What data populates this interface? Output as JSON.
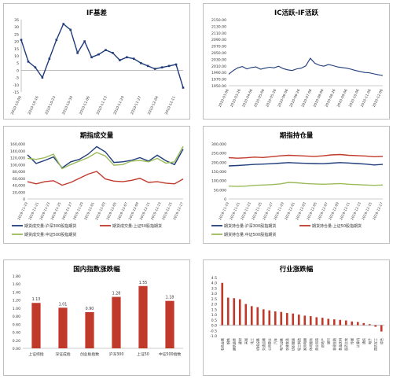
{
  "chart_data": [
    {
      "id": "if_basis",
      "type": "line",
      "title": "IF基差",
      "ylim": [
        -15,
        35
      ],
      "yticks": [
        -15,
        -10,
        -5,
        0,
        5,
        10,
        15,
        20,
        25,
        30,
        35
      ],
      "x": [
        "2010-10-09",
        "2010-10-12",
        "2010-10-15",
        "2010-10-18",
        "2010-10-21",
        "2010-10-23",
        "2010-10-26",
        "2010-10-29",
        "2010-11-01",
        "2010-11-04",
        "2010-11-06",
        "2010-11-09",
        "2010-11-12",
        "2010-11-15",
        "2010-11-18",
        "2010-11-21",
        "2010-11-24",
        "2010-11-27",
        "2010-11-30",
        "2010-12-03",
        "2010-12-06",
        "2010-12-08",
        "2010-12-11",
        "2010-12-14"
      ],
      "xticklabels": [
        "2010-10-09",
        "2010-10-16",
        "2010-10-23",
        "2010-10-30",
        "2010-11-06",
        "2010-11-13",
        "2010-11-20",
        "2010-11-27",
        "2010-12-04",
        "2010-12-11"
      ],
      "series": [
        {
          "values": [
            21,
            6,
            2,
            -5,
            8,
            21,
            32,
            28,
            12,
            20,
            9,
            11,
            14,
            12,
            7,
            9,
            8,
            5,
            3,
            1,
            2,
            3,
            4,
            -12
          ],
          "color": "#1f3c7a"
        }
      ]
    },
    {
      "id": "ic_if",
      "type": "line",
      "title": "IC活跃-IF活跃",
      "ylim": [
        1950,
        2150
      ],
      "yticks": [
        "1950.00",
        "1970.00",
        "1990.00",
        "2010.00",
        "2030.00",
        "2050.00",
        "2070.00",
        "2090.00",
        "2110.00",
        "2130.00",
        "2150.00"
      ],
      "ytick_values": [
        1950,
        1970,
        1990,
        2010,
        2030,
        2050,
        2070,
        2090,
        2110,
        2130,
        2150
      ],
      "xticklabels": [
        "2010-03-06",
        "2010-03-26",
        "2010-04-06",
        "2010-05-06",
        "2010-05-26",
        "2010-06-06",
        "2010-06-26",
        "2010-07-06",
        "2010-08-06",
        "2010-08-26",
        "2010-09-06",
        "2010-10-06",
        "2010-11-06",
        "2010-12-06"
      ],
      "series": [
        {
          "values": [
            1985,
            1996,
            2004,
            2008,
            2001,
            2005,
            2007,
            2000,
            2003,
            2006,
            2004,
            2009,
            2002,
            1998,
            1996,
            2001,
            2003,
            2010,
            2033,
            2018,
            2012,
            2009,
            2014,
            2011,
            2007,
            2005,
            2003,
            2000,
            1996,
            1993,
            1990,
            1989,
            1986,
            1983,
            1981
          ],
          "color": "#1f3c7a"
        }
      ]
    },
    {
      "id": "volume",
      "type": "line",
      "title": "期指成交量",
      "ylim": [
        0,
        160000
      ],
      "yticks": [
        "0",
        "20,000",
        "40,000",
        "60,000",
        "80,000",
        "100,000",
        "120,000",
        "140,000",
        "160,000"
      ],
      "ytick_values": [
        0,
        20000,
        40000,
        60000,
        80000,
        100000,
        120000,
        140000,
        160000
      ],
      "xticklabels": [
        "2019-11-19",
        "2019-11-21",
        "2019-11-23",
        "2019-11-25",
        "2019-11-27",
        "2019-11-29",
        "2019-12-01",
        "2019-12-03",
        "2019-12-05",
        "2019-12-07",
        "2019-12-09",
        "2019-12-11",
        "2019-12-13",
        "2019-12-15",
        "2019-12-17"
      ],
      "legend": [
        "期货成交量:沪深300股指期货",
        "期货成交量:上证50股指期货",
        "期货成交量:中证500股指期货"
      ],
      "legend_position": "bottom",
      "series": [
        {
          "name": "期货成交量:沪深300股指期货",
          "color": "#1f3c7a",
          "values": [
            128000,
            103000,
            112000,
            122000,
            90000,
            108000,
            115000,
            130000,
            152000,
            137000,
            106000,
            108000,
            112000,
            120000,
            110000,
            127000,
            111000,
            100000,
            145000
          ]
        },
        {
          "name": "期货成交量:上证50股指期货",
          "color": "#c0392b",
          "values": [
            50000,
            44000,
            50000,
            53000,
            40000,
            48000,
            60000,
            72000,
            80000,
            58000,
            52000,
            50000,
            54000,
            60000,
            48000,
            50000,
            46000,
            44000,
            58000
          ]
        },
        {
          "name": "期货成交量:中证500股指期货",
          "color": "#9bbb59",
          "values": [
            118000,
            115000,
            120000,
            130000,
            88000,
            100000,
            110000,
            120000,
            135000,
            125000,
            98000,
            100000,
            110000,
            112000,
            108000,
            118000,
            104000,
            108000,
            153000
          ]
        }
      ]
    },
    {
      "id": "open_interest",
      "type": "line",
      "title": "期指持仓量",
      "ylim": [
        0,
        300000
      ],
      "yticks": [
        "0",
        "50,000",
        "100,000",
        "150,000",
        "200,000",
        "250,000",
        "300,000"
      ],
      "ytick_values": [
        0,
        50000,
        100000,
        150000,
        200000,
        250000,
        300000
      ],
      "xticklabels": [
        "2019-11-19",
        "2019-11-21",
        "2019-11-23",
        "2019-11-25",
        "2019-11-27",
        "2019-11-29",
        "2019-12-01",
        "2019-12-03",
        "2019-12-05",
        "2019-12-07",
        "2019-12-09",
        "2019-12-11",
        "2019-12-13",
        "2019-12-15",
        "2019-12-17"
      ],
      "legend": [
        "期货持仓量:沪深300股指期货",
        "期货持仓量:上证50股指期货",
        "期货持仓量:中证500股指期货"
      ],
      "legend_position": "bottom",
      "series": [
        {
          "name": "期货持仓量:沪深300股指期货",
          "color": "#1f3c7a",
          "values": [
            180000,
            182000,
            185000,
            188000,
            190000,
            192000,
            195000,
            198000,
            196000,
            194000,
            193000,
            192000,
            195000,
            198000,
            196000,
            193000,
            190000,
            185000,
            188000
          ]
        },
        {
          "name": "期货持仓量:上证50股指期货",
          "color": "#c0392b",
          "values": [
            225000,
            222000,
            224000,
            228000,
            226000,
            230000,
            235000,
            238000,
            236000,
            234000,
            232000,
            235000,
            240000,
            242000,
            238000,
            236000,
            234000,
            230000,
            232000
          ]
        },
        {
          "name": "期货持仓量:中证500股指期货",
          "color": "#9bbb59",
          "values": [
            70000,
            68000,
            70000,
            74000,
            76000,
            78000,
            82000,
            90000,
            88000,
            84000,
            82000,
            80000,
            82000,
            84000,
            80000,
            78000,
            76000,
            74000,
            76000
          ]
        }
      ]
    },
    {
      "id": "domestic_index",
      "type": "bar",
      "title": "国内指数涨跌幅",
      "categories": [
        "上证综指",
        "深证成指",
        "创业板指数",
        "沪深300",
        "上证50",
        "中证500指数"
      ],
      "values": [
        1.13,
        1.01,
        0.9,
        1.28,
        1.55,
        1.18
      ],
      "value_labels": [
        "1.13",
        "1.01",
        "0.90",
        "1.28",
        "1.55",
        "1.18"
      ],
      "yticks": [
        "0.00",
        "0.20",
        "0.40",
        "0.60",
        "0.80",
        "1.00",
        "1.20",
        "1.40",
        "1.60",
        "1.80"
      ],
      "ytick_values": [
        0,
        0.2,
        0.4,
        0.6,
        0.8,
        1.0,
        1.2,
        1.4,
        1.6,
        1.8
      ],
      "ylim": [
        0,
        1.8
      ],
      "color": "#c0392b"
    },
    {
      "id": "industry",
      "type": "bar",
      "title": "行业涨跌幅",
      "categories": [
        "有色金属",
        "钢铁",
        "建筑装饰",
        "建材",
        "采掘",
        "化工",
        "机械设备",
        "交通运输",
        "公用事业",
        "汽车",
        "电气设备",
        "农林牧渔",
        "纺织服装",
        "轻工制造",
        "家用电器",
        "休闲服务",
        "商业贸易",
        "房地产",
        "银行",
        "非银金融",
        "食品饮料",
        "医药生物",
        "传媒",
        "计算机",
        "通信",
        "电子",
        "国防军工",
        "综合"
      ],
      "values": [
        4.0,
        2.6,
        2.55,
        2.45,
        2.0,
        1.8,
        1.7,
        1.5,
        1.4,
        1.3,
        1.25,
        1.15,
        1.1,
        1.0,
        0.9,
        0.85,
        0.75,
        0.7,
        0.6,
        0.55,
        0.5,
        0.45,
        0.35,
        0.3,
        0.2,
        0.1,
        -0.15,
        -0.6
      ],
      "yticks": [
        "-1.0",
        "-0.5",
        "0.0",
        "0.5",
        "1.0",
        "1.5",
        "2.0",
        "2.5",
        "3.0",
        "3.5",
        "4.0",
        "4.5"
      ],
      "ytick_values": [
        -1.0,
        -0.5,
        0.0,
        0.5,
        1.0,
        1.5,
        2.0,
        2.5,
        3.0,
        3.5,
        4.0,
        4.5
      ],
      "ylim": [
        -1.0,
        4.5
      ],
      "color": "#c0392b"
    }
  ]
}
